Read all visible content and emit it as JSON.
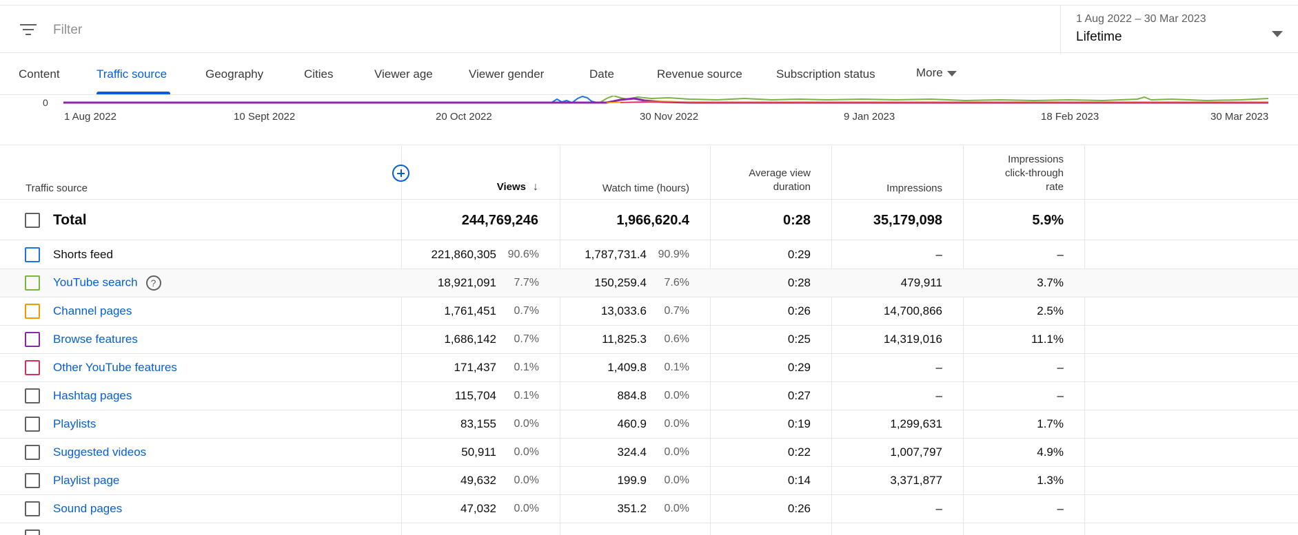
{
  "filter": {
    "placeholder": "Filter"
  },
  "date_picker": {
    "range": "1 Aug 2022 – 30 Mar 2023",
    "label": "Lifetime"
  },
  "tabs": [
    {
      "label": "Content"
    },
    {
      "label": "Traffic source"
    },
    {
      "label": "Geography"
    },
    {
      "label": "Cities"
    },
    {
      "label": "Viewer age"
    },
    {
      "label": "Viewer gender"
    },
    {
      "label": "Date"
    },
    {
      "label": "Revenue source"
    },
    {
      "label": "Subscription status"
    },
    {
      "label": "More"
    }
  ],
  "active_tab": "Traffic source",
  "colors": {
    "accent": "#065fd4",
    "shorts": "#1a73e8",
    "search": "#7cb342",
    "channel": "#f29900",
    "browse": "#8e24aa",
    "other": "#d93059"
  },
  "chart_data": {
    "type": "line",
    "y_tick_labels": [
      "0"
    ],
    "x_tick_labels": [
      "1 Aug 2022",
      "10 Sept 2022",
      "20 Oct 2022",
      "30 Nov 2022",
      "9 Jan 2023",
      "18 Feb 2023",
      "30 Mar 2023"
    ],
    "note_series_colors": [
      "#1a73e8",
      "#7cb342",
      "#f29900",
      "#8e24aa",
      "#d93059"
    ]
  },
  "table": {
    "headers": {
      "source": "Traffic source",
      "views": "Views",
      "watch": "Watch time (hours)",
      "avg1": "Average view",
      "avg2": "duration",
      "impr": "Impressions",
      "ctr1": "Impressions",
      "ctr2": "click-through",
      "ctr3": "rate"
    },
    "total": {
      "label": "Total",
      "views": "244,769,246",
      "watch": "1,966,620.4",
      "avg": "0:28",
      "impr": "35,179,098",
      "ctr": "5.9%"
    },
    "rows": [
      {
        "name": "Shorts feed",
        "views": "221,860,305",
        "views_pct": "90.6%",
        "watch": "1,787,731.4",
        "watch_pct": "90.9%",
        "avg": "0:29",
        "impr": "–",
        "ctr": "–"
      },
      {
        "name": "YouTube search",
        "views": "18,921,091",
        "views_pct": "7.7%",
        "watch": "150,259.4",
        "watch_pct": "7.6%",
        "avg": "0:28",
        "impr": "479,911",
        "ctr": "3.7%"
      },
      {
        "name": "Channel pages",
        "views": "1,761,451",
        "views_pct": "0.7%",
        "watch": "13,033.6",
        "watch_pct": "0.7%",
        "avg": "0:26",
        "impr": "14,700,866",
        "ctr": "2.5%"
      },
      {
        "name": "Browse features",
        "views": "1,686,142",
        "views_pct": "0.7%",
        "watch": "11,825.3",
        "watch_pct": "0.6%",
        "avg": "0:25",
        "impr": "14,319,016",
        "ctr": "11.1%"
      },
      {
        "name": "Other YouTube features",
        "views": "171,437",
        "views_pct": "0.1%",
        "watch": "1,409.8",
        "watch_pct": "0.1%",
        "avg": "0:29",
        "impr": "–",
        "ctr": "–"
      },
      {
        "name": "Hashtag pages",
        "views": "115,704",
        "views_pct": "0.1%",
        "watch": "884.8",
        "watch_pct": "0.0%",
        "avg": "0:27",
        "impr": "–",
        "ctr": "–"
      },
      {
        "name": "Playlists",
        "views": "83,155",
        "views_pct": "0.0%",
        "watch": "460.9",
        "watch_pct": "0.0%",
        "avg": "0:19",
        "impr": "1,299,631",
        "ctr": "1.7%"
      },
      {
        "name": "Suggested videos",
        "views": "50,911",
        "views_pct": "0.0%",
        "watch": "324.4",
        "watch_pct": "0.0%",
        "avg": "0:22",
        "impr": "1,007,797",
        "ctr": "4.9%"
      },
      {
        "name": "Playlist page",
        "views": "49,632",
        "views_pct": "0.0%",
        "watch": "199.9",
        "watch_pct": "0.0%",
        "avg": "0:14",
        "impr": "3,371,877",
        "ctr": "1.3%"
      },
      {
        "name": "Sound pages",
        "views": "47,032",
        "views_pct": "0.0%",
        "watch": "351.2",
        "watch_pct": "0.0%",
        "avg": "0:26",
        "impr": "–",
        "ctr": "–"
      }
    ]
  }
}
